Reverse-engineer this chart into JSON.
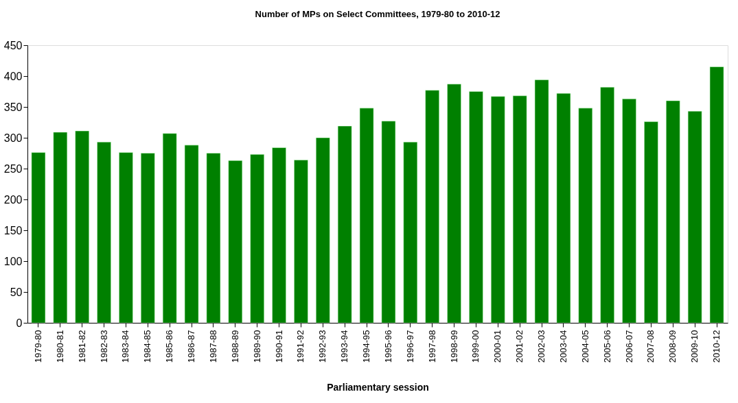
{
  "chart_data": {
    "type": "bar",
    "title": "Number of MPs on Select Committees, 1979-80  to 2010-12",
    "xlabel": "Parliamentary session",
    "categories": [
      "1979-80",
      "1980-81",
      "1981-82",
      "1982-83",
      "1983-84",
      "1984-85",
      "1985-86",
      "1986-87",
      "1987-88",
      "1988-89",
      "1989-90",
      "1990-91",
      "1991-92",
      "1992-93",
      "1993-94",
      "1994-95",
      "1995-96",
      "1996-97",
      "1997-98",
      "1998-99",
      "1999-00",
      "2000-01",
      "2001-02",
      "2002-03",
      "2003-04",
      "2004-05",
      "2005-06",
      "2006-07",
      "2007-08",
      "2008-09",
      "2009-10",
      "2010-12"
    ],
    "values": [
      276,
      309,
      311,
      293,
      276,
      275,
      307,
      288,
      275,
      263,
      273,
      284,
      264,
      300,
      319,
      348,
      327,
      293,
      377,
      387,
      375,
      367,
      368,
      394,
      372,
      348,
      382,
      363,
      326,
      360,
      343,
      415
    ],
    "color": "#008000",
    "ylim": [
      0,
      450
    ],
    "yticks": [
      0,
      50,
      100,
      150,
      200,
      250,
      300,
      350,
      400,
      450
    ],
    "grid": false
  }
}
